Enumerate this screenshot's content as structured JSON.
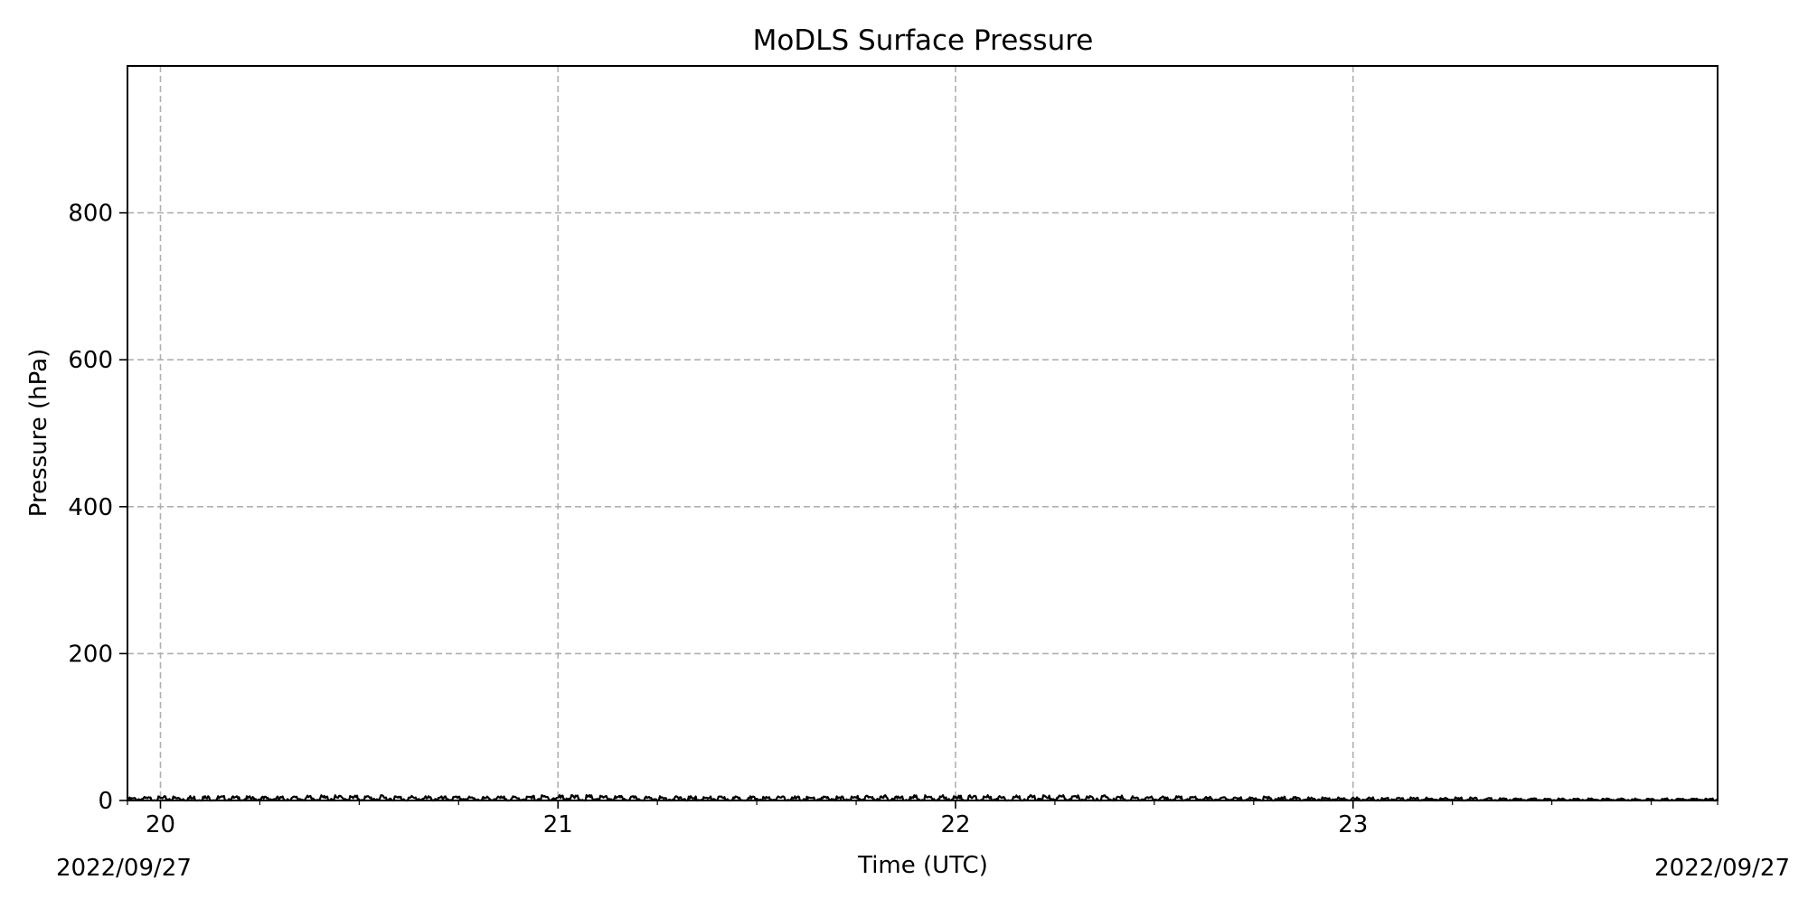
{
  "chart_data": {
    "type": "line",
    "title": "MoDLS Surface Pressure",
    "xlabel": "Time (UTC)",
    "ylabel": "Pressure (hPa)",
    "x_unit": "hour (UTC) on 2022/09/27",
    "xlim": [
      19.917,
      23.917
    ],
    "ylim": [
      0,
      1000
    ],
    "x_ticks": [
      20,
      21,
      22,
      23
    ],
    "x_tick_labels": [
      "20",
      "21",
      "22",
      "23"
    ],
    "y_ticks": [
      0,
      200,
      400,
      600,
      800
    ],
    "y_tick_labels": [
      "0",
      "200",
      "400",
      "600",
      "800"
    ],
    "date_left": "2022/09/27",
    "date_right": "2022/09/27",
    "grid": true,
    "series": [
      {
        "color": "#000000",
        "x": [
          19.92,
          20.0,
          20.1,
          20.2,
          20.3,
          20.4,
          20.5,
          20.6,
          20.7,
          20.8,
          20.9,
          21.0,
          21.1,
          21.2,
          21.3,
          21.4,
          21.5,
          21.6,
          21.7,
          21.8,
          21.9,
          22.0,
          22.1,
          22.2,
          22.3,
          22.4,
          22.5,
          22.6,
          22.7,
          22.8,
          22.9,
          23.0,
          23.1,
          23.2,
          23.3,
          23.4,
          23.5,
          23.6,
          23.7,
          23.8,
          23.917
        ],
        "y": [
          3,
          4,
          5,
          4,
          4,
          5,
          5,
          5,
          4,
          4,
          4,
          6,
          5,
          4,
          4,
          4,
          4,
          4,
          4,
          5,
          5,
          5,
          5,
          5,
          5,
          5,
          4,
          4,
          3,
          4,
          3,
          3,
          3,
          3,
          3,
          2,
          2,
          2,
          2,
          2,
          2
        ]
      }
    ]
  }
}
